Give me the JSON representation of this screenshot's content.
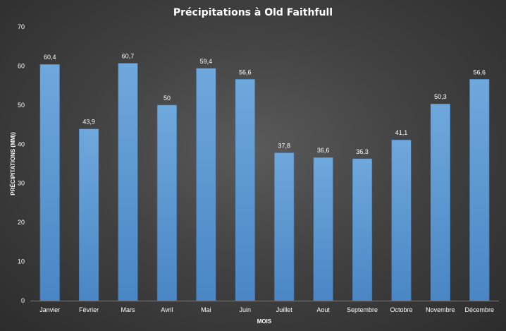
{
  "chart_data": {
    "type": "bar",
    "title": "Précipitations à Old Faithfull",
    "xlabel": "MOIS",
    "ylabel": "PRÉCIPITATIONS (MM))",
    "categories": [
      "Janvier",
      "Février",
      "Mars",
      "Avril",
      "Mai",
      "Juin",
      "Juillet",
      "Aout",
      "Septembre",
      "Octobre",
      "Novembre",
      "Décembre"
    ],
    "values": [
      60.4,
      43.9,
      60.7,
      50,
      59.4,
      56.6,
      37.8,
      36.6,
      36.3,
      41.1,
      50.3,
      56.6
    ],
    "data_labels": [
      "60,4",
      "43,9",
      "60,7",
      "50",
      "59,4",
      "56,6",
      "37,8",
      "36,6",
      "36,3",
      "41,1",
      "50,3",
      "56,6"
    ],
    "ylim": [
      0,
      70
    ],
    "yticks": [
      0,
      10,
      20,
      30,
      40,
      50,
      60,
      70
    ],
    "grid": false,
    "legend": "none",
    "bar_color": "#5b9bd5"
  }
}
